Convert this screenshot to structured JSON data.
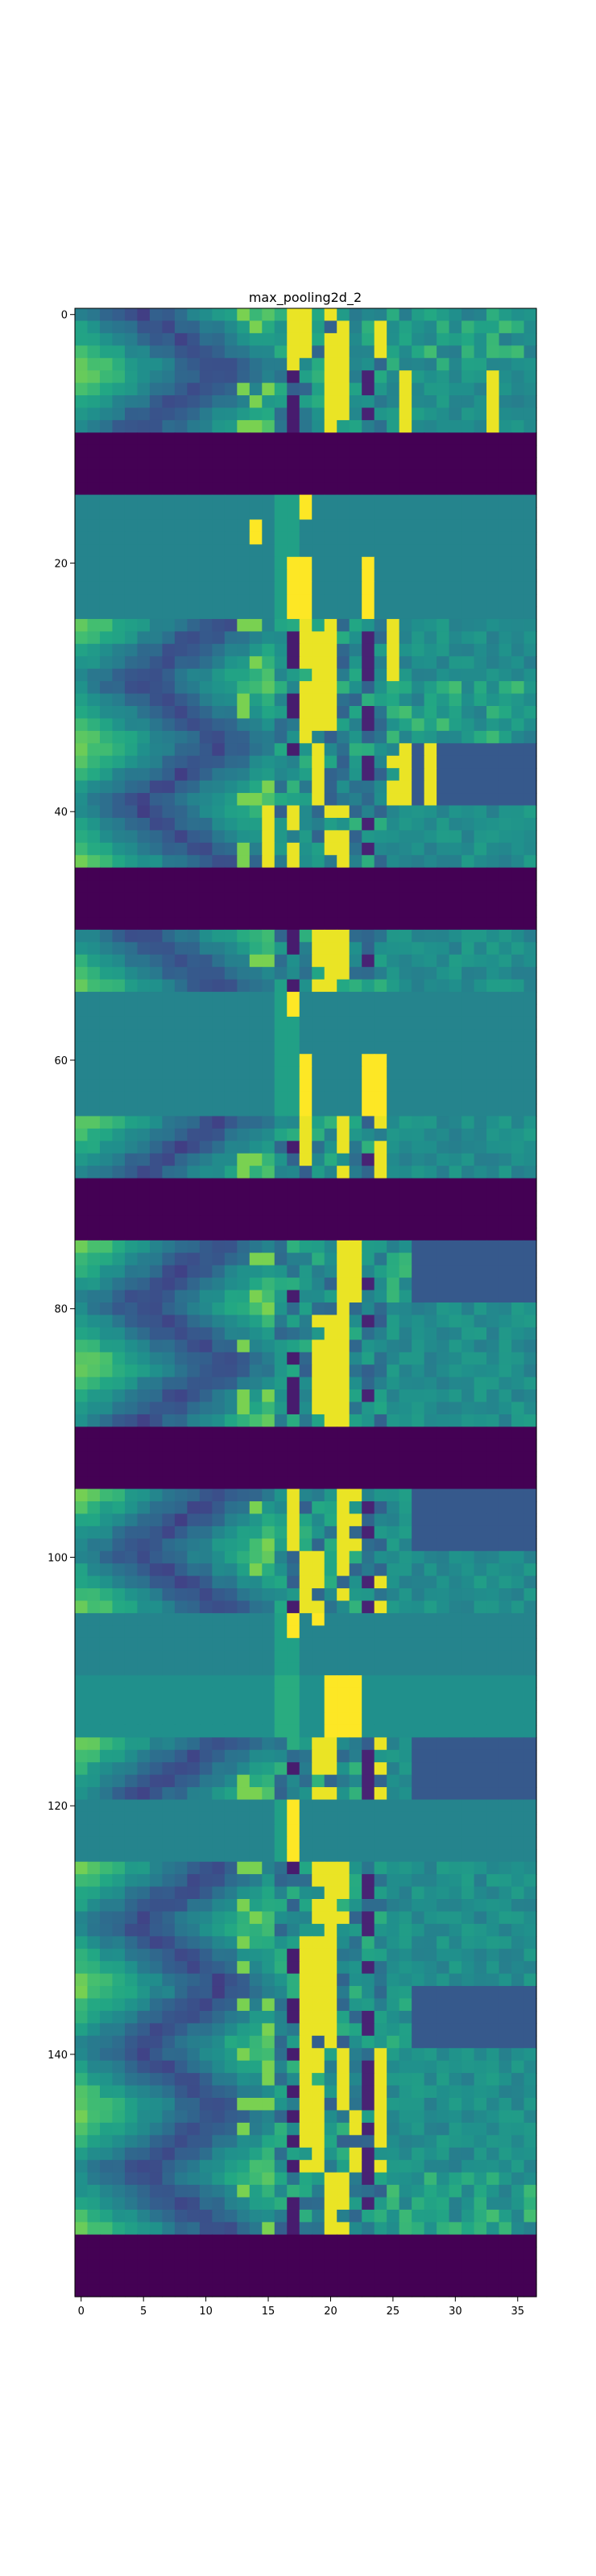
{
  "chart_data": {
    "type": "heatmap",
    "title": "max_pooling2d_2",
    "colormap": "viridis",
    "xlim": [
      -0.5,
      36.5
    ],
    "ylim": [
      159.5,
      -0.5
    ],
    "xticks": [
      0,
      5,
      10,
      15,
      20,
      25,
      30,
      35
    ],
    "yticks": [
      0,
      20,
      40,
      60,
      80,
      100,
      120,
      140
    ],
    "columns": 37,
    "rows": 160,
    "bands": [
      {
        "rows": [
          0,
          4
        ],
        "pattern": "feature",
        "bright_cols": [
          17,
          18,
          20,
          21,
          24
        ]
      },
      {
        "rows": [
          5,
          9
        ],
        "pattern": "feature",
        "bright_cols": [
          20,
          21,
          26,
          33
        ]
      },
      {
        "rows": [
          10,
          14
        ],
        "pattern": "dead",
        "value": 0.0
      },
      {
        "rows": [
          15,
          19
        ],
        "pattern": "flat",
        "base": 0.45,
        "spots": [
          [
            15,
            18
          ],
          [
            16,
            18
          ],
          [
            17,
            14
          ],
          [
            18,
            14
          ]
        ]
      },
      {
        "rows": [
          20,
          24
        ],
        "pattern": "flat",
        "base": 0.45,
        "bright_cols": [
          17,
          18,
          23
        ]
      },
      {
        "rows": [
          25,
          29
        ],
        "pattern": "feature",
        "bright_cols": [
          18,
          19,
          20,
          25
        ]
      },
      {
        "rows": [
          30,
          34
        ],
        "pattern": "feature",
        "bright_cols": [
          18,
          19,
          20
        ]
      },
      {
        "rows": [
          35,
          39
        ],
        "pattern": "feature",
        "bright_cols": [
          19,
          25,
          26,
          28
        ]
      },
      {
        "rows": [
          40,
          44
        ],
        "pattern": "feature",
        "bright_cols": [
          15,
          17,
          20,
          21
        ]
      },
      {
        "rows": [
          45,
          49
        ],
        "pattern": "dead",
        "value": 0.0
      },
      {
        "rows": [
          50,
          54
        ],
        "pattern": "feature",
        "bright_cols": [
          19,
          20,
          21
        ]
      },
      {
        "rows": [
          55,
          59
        ],
        "pattern": "flat",
        "base": 0.45,
        "spots": [
          [
            55,
            17
          ],
          [
            56,
            17
          ]
        ]
      },
      {
        "rows": [
          60,
          64
        ],
        "pattern": "flat",
        "base": 0.45,
        "bright_cols": [
          18,
          23,
          24
        ]
      },
      {
        "rows": [
          65,
          69
        ],
        "pattern": "feature",
        "bright_cols": [
          18,
          21,
          24
        ]
      },
      {
        "rows": [
          70,
          74
        ],
        "pattern": "dead",
        "value": 0.0
      },
      {
        "rows": [
          75,
          79
        ],
        "pattern": "feature",
        "bright_cols": [
          21,
          22
        ]
      },
      {
        "rows": [
          80,
          84
        ],
        "pattern": "feature",
        "bright_cols": [
          19,
          20,
          21
        ]
      },
      {
        "rows": [
          85,
          89
        ],
        "pattern": "feature",
        "bright_cols": [
          19,
          20,
          21
        ]
      },
      {
        "rows": [
          90,
          94
        ],
        "pattern": "dead",
        "value": 0.0
      },
      {
        "rows": [
          95,
          99
        ],
        "pattern": "feature",
        "bright_cols": [
          17,
          21,
          22
        ]
      },
      {
        "rows": [
          100,
          104
        ],
        "pattern": "feature",
        "bright_cols": [
          18,
          19,
          21,
          24
        ]
      },
      {
        "rows": [
          105,
          109
        ],
        "pattern": "flat",
        "base": 0.45,
        "spots": [
          [
            105,
            17
          ],
          [
            106,
            17
          ],
          [
            105,
            19
          ]
        ]
      },
      {
        "rows": [
          110,
          114
        ],
        "pattern": "flat",
        "base": 0.5,
        "bright_cols": [
          20,
          21,
          22
        ]
      },
      {
        "rows": [
          115,
          119
        ],
        "pattern": "feature",
        "bright_cols": [
          19,
          20,
          24
        ]
      },
      {
        "rows": [
          120,
          124
        ],
        "pattern": "flat",
        "base": 0.45,
        "bright_cols": [
          17
        ]
      },
      {
        "rows": [
          125,
          129
        ],
        "pattern": "feature",
        "bright_cols": [
          19,
          20,
          21
        ]
      },
      {
        "rows": [
          130,
          134
        ],
        "pattern": "feature",
        "bright_cols": [
          18,
          19,
          20
        ]
      },
      {
        "rows": [
          135,
          139
        ],
        "pattern": "feature",
        "bright_cols": [
          18,
          19,
          20
        ]
      },
      {
        "rows": [
          140,
          144
        ],
        "pattern": "feature",
        "bright_cols": [
          18,
          19,
          21,
          24
        ]
      },
      {
        "rows": [
          145,
          149
        ],
        "pattern": "feature",
        "bright_cols": [
          18,
          19,
          22,
          24
        ]
      },
      {
        "rows": [
          150,
          154
        ],
        "pattern": "feature",
        "bright_cols": [
          20,
          21
        ]
      },
      {
        "rows": [
          155,
          159
        ],
        "pattern": "dead",
        "value": 0.0
      }
    ]
  }
}
